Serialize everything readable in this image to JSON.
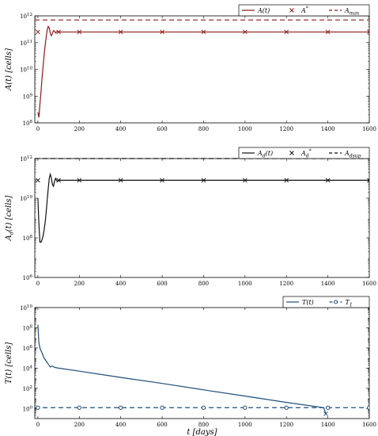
{
  "chart_data": [
    {
      "type": "line",
      "ylabel": "A(t) [cells]",
      "xlabel": "",
      "yscale": "log",
      "ylim": [
        100000000.0,
        1000000000000.0
      ],
      "xlim": [
        -15,
        1600
      ],
      "yticks": [
        {
          "v": 100000000.0,
          "label": "10^8"
        },
        {
          "v": 1000000000.0,
          "label": "10^9"
        },
        {
          "v": 10000000000.0,
          "label": "10^10"
        },
        {
          "v": 100000000000.0,
          "label": "10^11"
        },
        {
          "v": 1000000000000.0,
          "label": "10^12"
        }
      ],
      "xticks": [
        0,
        200,
        400,
        600,
        800,
        1000,
        1200,
        1400,
        1600
      ],
      "series": [
        {
          "name": "A(t)",
          "style": "solid",
          "color": "#8b1a1a",
          "x": [
            0,
            5,
            10,
            15,
            20,
            25,
            30,
            35,
            40,
            45,
            50,
            55,
            60,
            65,
            70,
            75,
            80,
            85,
            90,
            95,
            100,
            110,
            120,
            140,
            160,
            180,
            200,
            400,
            600,
            800,
            1000,
            1200,
            1400,
            1600
          ],
          "y": [
            250000000.0,
            160000000.0,
            500000000.0,
            1500000000.0,
            5000000000.0,
            13000000000.0,
            35000000000.0,
            80000000000.0,
            160000000000.0,
            300000000000.0,
            400000000000.0,
            350000000000.0,
            220000000000.0,
            180000000000.0,
            220000000000.0,
            280000000000.0,
            270000000000.0,
            230000000000.0,
            250000000000.0,
            260000000000.0,
            250000000000.0,
            250000000000.0,
            250000000000.0,
            250000000000.0,
            250000000000.0,
            250000000000.0,
            250000000000.0,
            250000000000.0,
            250000000000.0,
            250000000000.0,
            250000000000.0,
            250000000000.0,
            250000000000.0,
            250000000000.0
          ]
        },
        {
          "name": "A*",
          "style": "marker-x",
          "color": "#8b1a1a",
          "x": [
            0,
            100,
            200,
            400,
            600,
            800,
            1000,
            1200,
            1400,
            1600
          ],
          "y": [
            250000000000.0,
            250000000000.0,
            250000000000.0,
            250000000000.0,
            250000000000.0,
            250000000000.0,
            250000000000.0,
            250000000000.0,
            250000000000.0,
            250000000000.0
          ]
        },
        {
          "name": "A_max",
          "style": "dashed",
          "color": "#8b1a1a",
          "x": [
            -15,
            1600
          ],
          "y": [
            700000000000.0,
            700000000000.0
          ]
        }
      ],
      "legend": "top-right",
      "grid": false
    },
    {
      "type": "line",
      "ylabel": "A_d(t) [cells]",
      "xlabel": "",
      "yscale": "log",
      "ylim": [
        1000000.0,
        1000000000000.0
      ],
      "xlim": [
        -15,
        1600
      ],
      "yticks": [
        {
          "v": 1000000.0,
          "label": "10^6"
        },
        {
          "v": 100000000.0,
          "label": "10^8"
        },
        {
          "v": 10000000000.0,
          "label": "10^10"
        },
        {
          "v": 1000000000000.0,
          "label": "10^12"
        }
      ],
      "xticks": [
        0,
        200,
        400,
        600,
        800,
        1000,
        1200,
        1400,
        1600
      ],
      "series": [
        {
          "name": "A_d(t)",
          "style": "solid",
          "color": "#111111",
          "x": [
            0,
            5,
            10,
            15,
            20,
            25,
            30,
            35,
            40,
            45,
            50,
            55,
            60,
            65,
            70,
            75,
            80,
            85,
            90,
            95,
            100,
            110,
            120,
            140,
            160,
            180,
            200,
            400,
            600,
            800,
            1000,
            1200,
            1400,
            1600
          ],
          "y": [
            10000000000.0,
            500000000.0,
            60000000.0,
            60000000.0,
            80000000.0,
            130000000.0,
            250000000.0,
            600000000.0,
            2000000000.0,
            8000000000.0,
            30000000000.0,
            100000000000.0,
            160000000000.0,
            100000000000.0,
            50000000000.0,
            40000000000.0,
            70000000000.0,
            100000000000.0,
            80000000000.0,
            70000000000.0,
            80000000000.0,
            80000000000.0,
            80000000000.0,
            80000000000.0,
            80000000000.0,
            80000000000.0,
            80000000000.0,
            80000000000.0,
            80000000000.0,
            80000000000.0,
            80000000000.0,
            80000000000.0,
            80000000000.0,
            80000000000.0
          ]
        },
        {
          "name": "A_d*",
          "style": "marker-x",
          "color": "#111111",
          "x": [
            0,
            100,
            200,
            400,
            600,
            800,
            1000,
            1200,
            1400,
            1600
          ],
          "y": [
            80000000000.0,
            80000000000.0,
            80000000000.0,
            80000000000.0,
            80000000000.0,
            80000000000.0,
            80000000000.0,
            80000000000.0,
            80000000000.0,
            80000000000.0
          ]
        },
        {
          "name": "A_dsup",
          "style": "dashed",
          "color": "#111111",
          "x": [
            -15,
            1600
          ],
          "y": [
            1000000000000.0,
            1000000000000.0
          ]
        }
      ],
      "legend": "top-right",
      "grid": false
    },
    {
      "type": "line",
      "ylabel": "T(t) [cells]",
      "xlabel": "t [days]",
      "yscale": "log",
      "ylim": [
        0.1,
        10000000000.0
      ],
      "xlim": [
        -15,
        1600
      ],
      "yticks": [
        {
          "v": 1,
          "label": "10^0"
        },
        {
          "v": 100.0,
          "label": "10^2"
        },
        {
          "v": 10000.0,
          "label": "10^4"
        },
        {
          "v": 1000000.0,
          "label": "10^6"
        },
        {
          "v": 100000000.0,
          "label": "10^8"
        },
        {
          "v": 10000000000.0,
          "label": "10^10"
        }
      ],
      "xticks": [
        0,
        200,
        400,
        600,
        800,
        1000,
        1200,
        1400,
        1600
      ],
      "series": [
        {
          "name": "T(t)",
          "style": "solid",
          "color": "#1f4e79",
          "x": [
            0,
            2,
            5,
            10,
            20,
            30,
            40,
            50,
            60,
            70,
            80,
            100,
            200,
            400,
            600,
            800,
            1000,
            1200,
            1380,
            1390
          ],
          "y": [
            200000000.0,
            30000000.0,
            3000000.0,
            1000000.0,
            300000.0,
            100000.0,
            50000.0,
            25000.0,
            13000.0,
            16000.0,
            12000.0,
            10000.0,
            5000.0,
            1200.0,
            300,
            70,
            17,
            4,
            1.2,
            0.3
          ]
        },
        {
          "name": "T_1",
          "style": "dashed-circle",
          "color": "#1f4e79",
          "x": [
            0,
            200,
            400,
            600,
            800,
            1000,
            1200,
            1400,
            1600
          ],
          "y": [
            1.2,
            1.2,
            1.2,
            1.2,
            1.2,
            1.2,
            1.2,
            1.2,
            1.2
          ],
          "line_x": [
            -15,
            1600
          ]
        }
      ],
      "legend": "top-right",
      "grid": false
    }
  ]
}
